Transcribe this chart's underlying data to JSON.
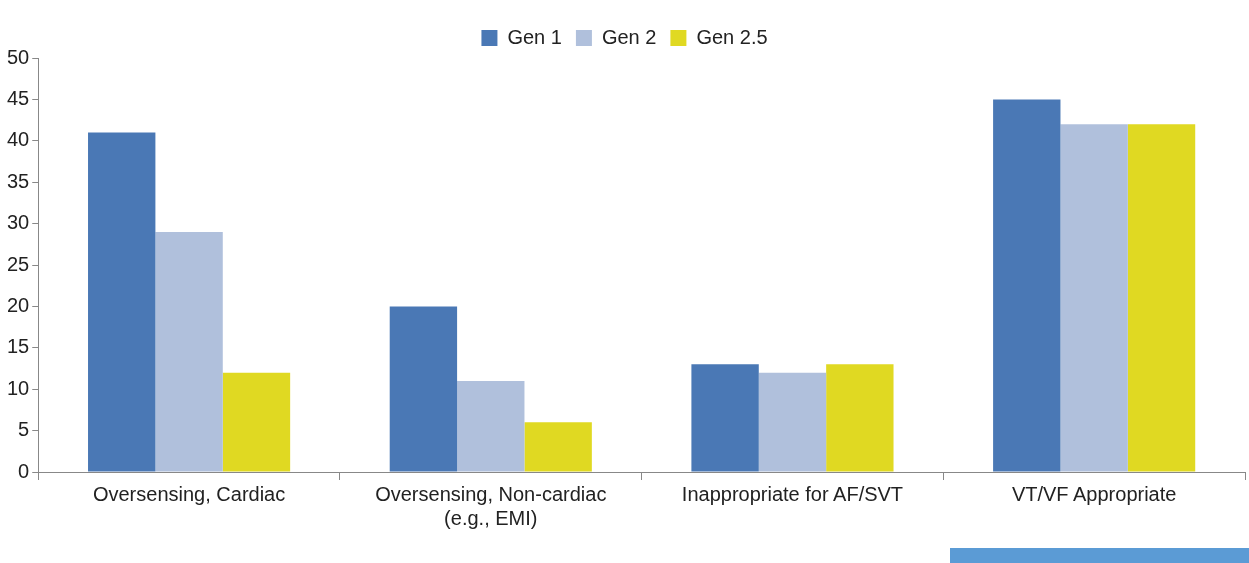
{
  "chart_data": {
    "type": "bar",
    "categories": [
      "Oversensing, Cardiac",
      "Oversensing, Non-cardiac (e.g., EMI)",
      "Inappropriate for AF/SVT",
      "VT/VF Appropriate"
    ],
    "series": [
      {
        "name": "Gen 1",
        "color": "#4a78b5",
        "values": [
          41,
          20,
          13,
          45
        ]
      },
      {
        "name": "Gen 2",
        "color": "#b0c0dc",
        "values": [
          29,
          11,
          12,
          42
        ]
      },
      {
        "name": "Gen 2.5",
        "color": "#e0d922",
        "values": [
          12,
          6,
          13,
          42
        ]
      }
    ],
    "ylim": [
      0,
      50
    ],
    "yticks": [
      0,
      5,
      10,
      15,
      20,
      25,
      30,
      35,
      40,
      45,
      50
    ],
    "grid": false,
    "legend": "top"
  }
}
